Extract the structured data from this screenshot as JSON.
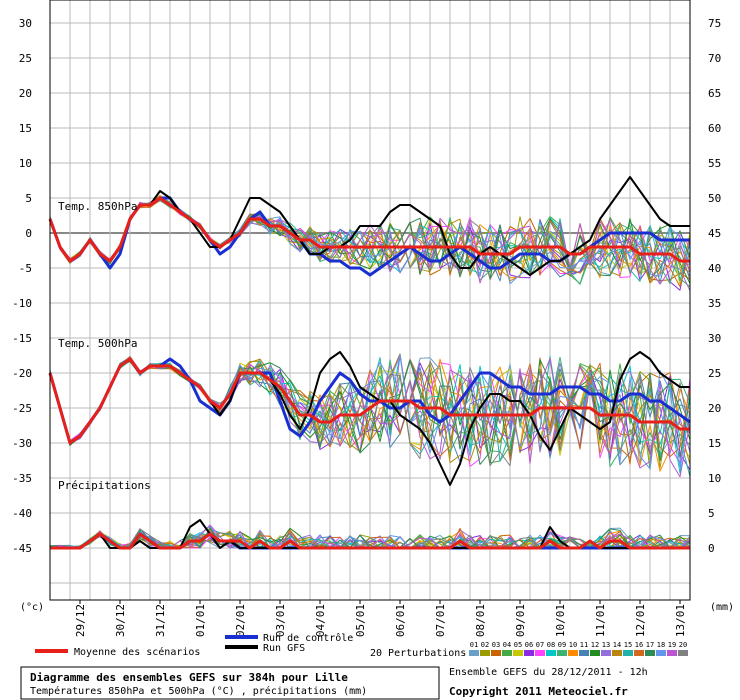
{
  "chart_data": {
    "type": "line",
    "title": "Diagramme des ensembles GEFS sur 384h pour Lille",
    "subtitle": "Températures 850hPa et 500hPa (°C) , précipitations (mm)",
    "run_info": "Ensemble GEFS du 28/12/2011 - 12h",
    "copyright": "Copyright 2011 Meteociel.fr",
    "left_unit": "(°c)",
    "right_unit": "(mm)",
    "left_axis": {
      "range": [
        -55,
        30
      ],
      "ticks": [
        "30",
        "25",
        "20",
        "15",
        "10",
        "5",
        "0",
        "-5",
        "-10",
        "-15",
        "-20",
        "-25",
        "-30",
        "-35",
        "-40",
        "-45"
      ]
    },
    "right_axis": {
      "ticks": [
        "75",
        "70",
        "65",
        "60",
        "55",
        "50",
        "45",
        "40",
        "35",
        "30",
        "25",
        "20",
        "15",
        "10",
        "5",
        "0"
      ]
    },
    "x_range_hours": [
      0,
      384
    ],
    "x_ticks": [
      "29/12",
      "30/12",
      "31/12",
      "01/01",
      "02/01",
      "03/01",
      "04/01",
      "05/01",
      "06/01",
      "07/01",
      "08/01",
      "09/01",
      "10/01",
      "11/01",
      "12/01",
      "13/01"
    ],
    "section_labels": [
      "Temp. 850hPa",
      "Temp. 500hPa",
      "Précipitations"
    ],
    "legend": {
      "mean": "Moyenne des scénarios",
      "control": "Run de contrôle",
      "gfs": "Run GFS",
      "perturbations": "20 Perturbations",
      "perturbation_ids": [
        "01",
        "02",
        "03",
        "04",
        "05",
        "06",
        "07",
        "08",
        "09",
        "10",
        "11",
        "12",
        "13",
        "14",
        "15",
        "16",
        "17",
        "18",
        "19",
        "20"
      ]
    },
    "colors": {
      "mean": "#e8201a",
      "control": "#1a2fd1",
      "gfs": "#000000",
      "grid": "#bbbbbb",
      "zero": "#888888",
      "perturbations": [
        "#6aa0c8",
        "#9c9c00",
        "#c86400",
        "#44aa44",
        "#c8c800",
        "#8a2be2",
        "#ff44ff",
        "#00c8c8",
        "#3cb371",
        "#ff8c00",
        "#4682b4",
        "#228b22",
        "#9370db",
        "#b8860b",
        "#20b2aa",
        "#d2691e",
        "#2e8b57",
        "#6495ed",
        "#ba55d3",
        "#808080"
      ]
    },
    "hours": [
      0,
      6,
      12,
      18,
      24,
      30,
      36,
      42,
      48,
      54,
      60,
      66,
      72,
      78,
      84,
      90,
      96,
      102,
      108,
      114,
      120,
      126,
      132,
      138,
      144,
      150,
      156,
      162,
      168,
      174,
      180,
      186,
      192,
      198,
      204,
      210,
      216,
      222,
      228,
      234,
      240,
      246,
      252,
      258,
      264,
      270,
      276,
      282,
      288,
      294,
      300,
      306,
      312,
      318,
      324,
      330,
      336,
      342,
      348,
      354,
      360,
      366,
      372,
      378,
      384
    ],
    "t850": {
      "mean": [
        2,
        -2,
        -4,
        -3,
        -1,
        -3,
        -4,
        -2,
        2,
        4,
        4,
        5,
        4,
        3,
        2,
        1,
        -1,
        -2,
        -1,
        0,
        2,
        2,
        1,
        1,
        0,
        -1,
        -1,
        -2,
        -2,
        -2,
        -2,
        -2,
        -2,
        -2,
        -2,
        -2,
        -2,
        -2,
        -2,
        -2,
        -2,
        -2,
        -2,
        -3,
        -3,
        -3,
        -3,
        -2,
        -2,
        -2,
        -2,
        -2,
        -3,
        -3,
        -2,
        -2,
        -2,
        -2,
        -2,
        -3,
        -3,
        -3,
        -3,
        -4,
        -4
      ],
      "control": [
        2,
        -2,
        -4,
        -3,
        -1,
        -3,
        -5,
        -3,
        2,
        4,
        4,
        5,
        5,
        3,
        2,
        1,
        -1,
        -3,
        -2,
        0,
        2,
        3,
        1,
        1,
        0,
        -1,
        -3,
        -3,
        -4,
        -4,
        -5,
        -5,
        -6,
        -5,
        -4,
        -3,
        -2,
        -3,
        -4,
        -4,
        -3,
        -2,
        -3,
        -4,
        -5,
        -5,
        -4,
        -3,
        -3,
        -3,
        -4,
        -4,
        -3,
        -3,
        -2,
        -1,
        0,
        0,
        0,
        0,
        0,
        -1,
        -1,
        -1,
        -1
      ],
      "gfs": [
        2,
        -2,
        -4,
        -3,
        -1,
        -3,
        -4,
        -2,
        2,
        4,
        4,
        6,
        5,
        3,
        2,
        0,
        -2,
        -2,
        -1,
        2,
        5,
        5,
        4,
        3,
        1,
        -1,
        -3,
        -3,
        -2,
        -2,
        -1,
        1,
        1,
        1,
        3,
        4,
        4,
        3,
        2,
        1,
        -3,
        -5,
        -5,
        -3,
        -2,
        -3,
        -4,
        -5,
        -6,
        -5,
        -4,
        -4,
        -3,
        -2,
        -1,
        2,
        4,
        6,
        8,
        6,
        4,
        2,
        1,
        1,
        1
      ]
    },
    "t500": {
      "mean": [
        -20,
        -25,
        -30,
        -29,
        -27,
        -25,
        -22,
        -19,
        -18,
        -20,
        -19,
        -19,
        -19,
        -20,
        -21,
        -22,
        -24,
        -25,
        -23,
        -20,
        -20,
        -20,
        -21,
        -22,
        -24,
        -26,
        -26,
        -27,
        -27,
        -26,
        -26,
        -26,
        -25,
        -24,
        -24,
        -24,
        -24,
        -25,
        -25,
        -25,
        -26,
        -26,
        -26,
        -26,
        -26,
        -26,
        -26,
        -26,
        -26,
        -25,
        -25,
        -25,
        -25,
        -25,
        -25,
        -26,
        -26,
        -26,
        -26,
        -27,
        -27,
        -27,
        -27,
        -28,
        -28
      ],
      "control": [
        -20,
        -25,
        -30,
        -29,
        -27,
        -25,
        -22,
        -19,
        -18,
        -20,
        -19,
        -19,
        -18,
        -19,
        -21,
        -24,
        -25,
        -26,
        -24,
        -20,
        -20,
        -20,
        -20,
        -24,
        -28,
        -29,
        -27,
        -24,
        -22,
        -20,
        -21,
        -23,
        -24,
        -24,
        -25,
        -25,
        -24,
        -24,
        -26,
        -27,
        -26,
        -24,
        -22,
        -20,
        -20,
        -21,
        -22,
        -22,
        -23,
        -23,
        -23,
        -22,
        -22,
        -22,
        -23,
        -23,
        -24,
        -24,
        -23,
        -23,
        -24,
        -24,
        -25,
        -26,
        -27
      ],
      "gfs": [
        -20,
        -25,
        -30,
        -29,
        -27,
        -25,
        -22,
        -19,
        -18,
        -20,
        -19,
        -19,
        -19,
        -20,
        -21,
        -22,
        -24,
        -26,
        -24,
        -20,
        -20,
        -20,
        -21,
        -23,
        -26,
        -28,
        -25,
        -20,
        -18,
        -17,
        -19,
        -22,
        -23,
        -24,
        -24,
        -26,
        -27,
        -28,
        -30,
        -33,
        -36,
        -33,
        -28,
        -25,
        -23,
        -23,
        -24,
        -24,
        -26,
        -29,
        -31,
        -28,
        -25,
        -26,
        -27,
        -28,
        -27,
        -21,
        -18,
        -17,
        -18,
        -20,
        -21,
        -22,
        -22
      ]
    },
    "precip": {
      "mean": [
        0,
        0,
        0,
        0,
        1,
        2,
        1,
        0,
        0,
        2,
        1,
        0,
        0,
        0,
        1,
        1,
        2,
        1,
        1,
        1,
        0,
        1,
        0,
        0,
        1,
        0,
        0,
        0,
        0,
        0,
        0,
        0,
        0,
        0,
        0,
        0,
        0,
        0,
        0,
        0,
        0,
        1,
        0,
        0,
        0,
        0,
        0,
        0,
        0,
        0,
        1,
        0,
        0,
        0,
        1,
        0,
        1,
        1,
        0,
        0,
        0,
        0,
        0,
        0,
        0
      ],
      "control": [
        0,
        0,
        0,
        0,
        1,
        2,
        1,
        0,
        0,
        2,
        1,
        0,
        0,
        0,
        1,
        1,
        2,
        1,
        1,
        0,
        0,
        0,
        0,
        0,
        0,
        0,
        0,
        0,
        0,
        0,
        0,
        0,
        0,
        0,
        0,
        0,
        0,
        0,
        0,
        0,
        0,
        0,
        0,
        0,
        0,
        0,
        0,
        0,
        0,
        0,
        0,
        0,
        0,
        0,
        0,
        0,
        0,
        0,
        0,
        0,
        0,
        0,
        0,
        0,
        0
      ],
      "gfs": [
        0,
        0,
        0,
        0,
        1,
        2,
        0,
        0,
        0,
        1,
        0,
        0,
        0,
        0,
        3,
        4,
        2,
        0,
        1,
        0,
        0,
        0,
        0,
        0,
        0,
        0,
        0,
        0,
        0,
        0,
        0,
        0,
        0,
        0,
        0,
        0,
        0,
        0,
        0,
        0,
        0,
        0,
        0,
        0,
        0,
        0,
        0,
        0,
        0,
        0,
        3,
        1,
        0,
        0,
        1,
        0,
        0,
        0,
        0,
        0,
        0,
        0,
        0,
        0,
        0
      ]
    }
  }
}
